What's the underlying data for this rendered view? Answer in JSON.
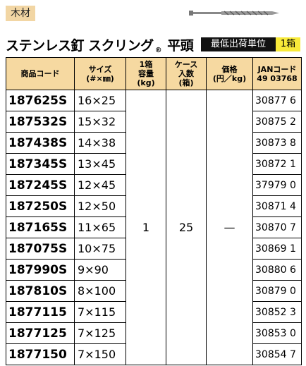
{
  "tag": "木材",
  "title": {
    "main": "ステンレス釘 スクリング",
    "mark": "®",
    "suffix": "平頭"
  },
  "min_unit": {
    "label": "最低出荷単位",
    "value": "1箱"
  },
  "table": {
    "headers": [
      [
        "商品コード"
      ],
      [
        "サイズ",
        "(#×㎜)"
      ],
      [
        "1箱",
        "容量",
        "(kg)"
      ],
      [
        "ケース",
        "入数",
        "(箱)"
      ],
      [
        "価格",
        "(円／kg)"
      ],
      [
        "JANコード",
        "49 03768"
      ]
    ],
    "weight": "1",
    "case_qty": "25",
    "price": "—",
    "rows": [
      [
        "187625S",
        "16×25",
        "30877 6"
      ],
      [
        "187532S",
        "15×32",
        "30875 2"
      ],
      [
        "187438S",
        "14×38",
        "30873 8"
      ],
      [
        "187345S",
        "13×45",
        "30872 1"
      ],
      [
        "187245S",
        "12×45",
        "37979 0"
      ],
      [
        "187250S",
        "12×50",
        "30871 4"
      ],
      [
        "187165S",
        "11×65",
        "30870 7"
      ],
      [
        "187075S",
        "10×75",
        "30869 1"
      ],
      [
        "187990S",
        "9×90",
        "30880 6"
      ],
      [
        "187810S",
        "8×100",
        "30879 0"
      ],
      [
        "1877115",
        "7×115",
        "30852 3"
      ],
      [
        "1877125",
        "7×125",
        "30853 0"
      ],
      [
        "1877150",
        "7×150",
        "30854 7"
      ]
    ]
  }
}
